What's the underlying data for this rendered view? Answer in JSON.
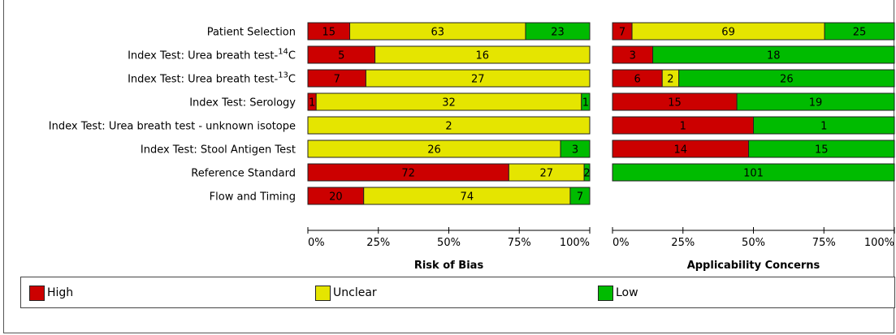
{
  "chart_data": {
    "type": "bar",
    "stacked": true,
    "categories": [
      "Patient Selection",
      "Index Test: Urea breath test-14C",
      "Index Test: Urea breath test-13C",
      "Index Test: Serology",
      "Index Test: Urea breath test - unknown isotope",
      "Index Test: Stool Antigen Test",
      "Reference Standard",
      "Flow and Timing"
    ],
    "category_labels": [
      {
        "text": "Patient Selection"
      },
      {
        "text": "Index Test: Urea breath test-",
        "sup": "14",
        "after": "C"
      },
      {
        "text": "Index Test: Urea breath test-",
        "sup": "13",
        "after": "C"
      },
      {
        "text": "Index Test: Serology"
      },
      {
        "text": "Index Test: Urea breath test - unknown isotope"
      },
      {
        "text": "Index Test: Stool Antigen Test"
      },
      {
        "text": "Reference Standard"
      },
      {
        "text": "Flow and Timing"
      }
    ],
    "colors": {
      "High": "#cc0000",
      "Unclear": "#e5e500",
      "Low": "#00bb00"
    },
    "xlim": [
      0,
      100
    ],
    "x_ticks": [
      "0%",
      "25%",
      "50%",
      "75%",
      "100%"
    ],
    "grid": false,
    "legend_position": "bottom",
    "panels": [
      {
        "xlabel": "Risk of Bias",
        "series": [
          {
            "name": "High",
            "values": [
              15,
              5,
              7,
              1,
              0,
              0,
              72,
              20
            ]
          },
          {
            "name": "Unclear",
            "values": [
              63,
              16,
              27,
              32,
              2,
              26,
              27,
              74
            ]
          },
          {
            "name": "Low",
            "values": [
              23,
              0,
              0,
              1,
              0,
              3,
              2,
              7
            ]
          }
        ]
      },
      {
        "xlabel": "Applicability Concerns",
        "series": [
          {
            "name": "High",
            "values": [
              7,
              3,
              6,
              15,
              1,
              14,
              0,
              null
            ]
          },
          {
            "name": "Unclear",
            "values": [
              69,
              0,
              2,
              0,
              0,
              0,
              0,
              null
            ]
          },
          {
            "name": "Low",
            "values": [
              25,
              18,
              26,
              19,
              1,
              15,
              101,
              null
            ]
          }
        ]
      }
    ]
  },
  "legend": {
    "items": [
      {
        "name": "High",
        "label": "High",
        "color": "#cc0000"
      },
      {
        "name": "Unclear",
        "label": "Unclear",
        "color": "#e5e500"
      },
      {
        "name": "Low",
        "label": "Low",
        "color": "#00bb00"
      }
    ]
  }
}
